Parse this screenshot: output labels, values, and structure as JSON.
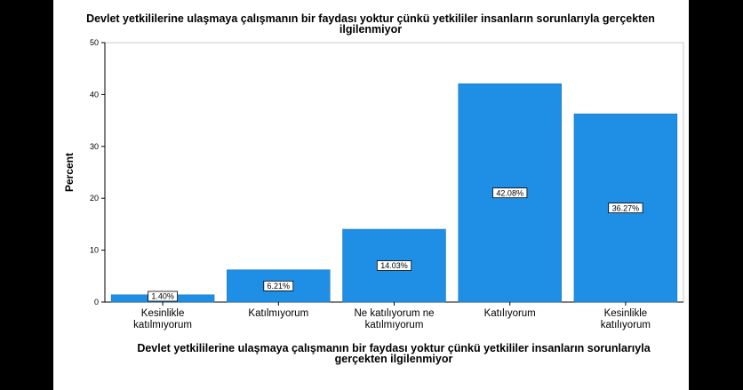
{
  "chart_data": {
    "type": "bar",
    "title": [
      "Devlet yetkililerine ulaşmaya çalışmanın bir faydası yoktur çünkü yetkililer insanların sorunlarıyla gerçekten",
      "ilgilenmiyor"
    ],
    "xlabel": [
      "Devlet yetkililerine ulaşmaya çalışmanın bir faydası yoktur çünkü yetkililer insanların sorunlarıyla",
      "gerçekten ilgilenmiyor"
    ],
    "ylabel": "Percent",
    "categories": [
      [
        "Kesinlikle",
        "katılmıyorum"
      ],
      [
        "Katılmıyorum"
      ],
      [
        "Ne katılıyorum ne",
        "katılmıyorum"
      ],
      [
        "Katılıyorum"
      ],
      [
        "Kesinlikle",
        "katılıyorum"
      ]
    ],
    "values": [
      1.4,
      6.21,
      14.03,
      42.08,
      36.27
    ],
    "data_labels": [
      "1.40%",
      "6.21%",
      "14.03%",
      "42.08%",
      "36.27%"
    ],
    "ylim": [
      0,
      50
    ],
    "yticks": [
      0,
      10,
      20,
      30,
      40,
      50
    ],
    "grid": false,
    "colors": {
      "bar": "#1f8fe5",
      "bar_edge": "#1a73b8",
      "axis": "#000000"
    }
  }
}
